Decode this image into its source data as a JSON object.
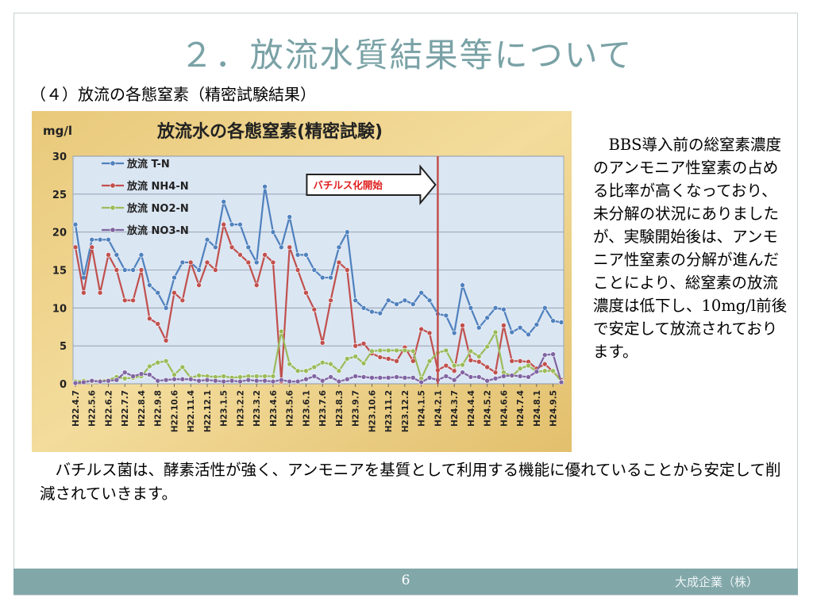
{
  "slide": {
    "title": "２．放流水質結果等について",
    "subtitle": "（４）放流の各態窒素（精密試験結果）",
    "side_text": "BBS導入前の総窒素濃度のアンモニア性窒素の占める比率が高くなっており、未分解の状況にありましたが、実験開始後は、アンモニア性窒素の分解が進んだことにより、総窒素の放流濃度は低下し、10mg/l前後で安定して放流されております。",
    "body_text": "バチルス菌は、酵素活性が強く、アンモニアを基質として利用する機能に優れていることから安定して削減されていきます。",
    "page_number": "6",
    "company": "大成企業（株）"
  },
  "colors": {
    "title": "#7aa2a6",
    "footer": "#82a7a9",
    "plot_bg": "#dbe6f3",
    "series_tn": "#4f81bd",
    "series_nh4": "#c0504d",
    "series_no2": "#9bbb59",
    "series_no3": "#8064a2",
    "marker_line": "#c0504d"
  },
  "chart_data": {
    "type": "line",
    "title": "放流水の各態窒素(精密試験)",
    "ylabel": "mg/l",
    "ylim": [
      0,
      30
    ],
    "yticks": [
      0,
      5,
      10,
      15,
      20,
      25,
      30
    ],
    "legend_position": "top-left",
    "grid": true,
    "annotation": {
      "text": "バチルス化開始",
      "at_index": 44
    },
    "x_tick_labels": [
      "H22.4.7",
      "H22.5.6",
      "H22.6.2",
      "H22.7.7",
      "H22.8.4",
      "H22.9.8",
      "H22.10.6",
      "H22.11.4",
      "H22.12.1",
      "H23.1.5",
      "H23.2.2",
      "H23.3.2",
      "H23.4.6",
      "H23.5.6",
      "H23.6.1",
      "H23.7.6",
      "H23.8.3",
      "H23.9.7",
      "H23.10.6",
      "H23.11.2",
      "H23.12.2",
      "H24.1.5",
      "H24.2.1",
      "H24.3.7",
      "H24.4.4",
      "H24.5.2",
      "H24.6.6",
      "H24.7.4",
      "H24.8.1",
      "H24.9.5"
    ],
    "series": [
      {
        "name": "放流 T-N",
        "values": [
          21,
          14,
          19,
          19,
          19,
          17,
          15,
          15,
          17,
          13,
          12,
          10,
          14,
          16,
          16,
          15,
          19,
          18,
          24,
          21,
          21,
          18,
          16,
          26,
          20,
          18,
          22,
          17,
          17,
          15,
          14,
          14,
          18,
          20,
          11,
          10,
          9.5,
          9.3,
          11,
          10.5,
          11,
          10.5,
          12,
          11,
          9.2,
          9,
          6.7,
          13,
          10,
          7.4,
          8.7,
          10,
          9.8,
          6.8,
          7.4,
          6.5,
          7.8,
          10,
          8.3,
          8.1
        ]
      },
      {
        "name": "放流 NH4-N",
        "values": [
          18,
          12,
          18,
          12,
          17,
          15,
          11,
          11,
          15,
          8.6,
          7.9,
          5.7,
          12,
          11,
          16,
          13,
          16,
          15,
          21,
          18,
          17,
          16,
          13,
          17,
          16,
          0.3,
          18,
          15,
          12,
          9.8,
          5.4,
          11,
          16,
          15,
          5,
          5.3,
          4,
          3.5,
          3.3,
          3,
          4.8,
          3,
          7.2,
          6.7,
          1.8,
          2.4,
          1.7,
          7.7,
          3.1,
          2.9,
          2.2,
          1.5,
          7.7,
          3,
          3,
          2.9,
          2,
          2.6,
          1.6,
          0.5
        ]
      },
      {
        "name": "放流 NO2-N",
        "values": [
          0.3,
          0.4,
          0.3,
          0.4,
          0.5,
          0.9,
          0.7,
          0.8,
          1,
          2.3,
          2.8,
          3,
          1.2,
          2.2,
          0.8,
          1.1,
          1,
          0.9,
          1,
          0.8,
          0.9,
          1,
          1,
          1,
          1,
          6.9,
          2.6,
          1.7,
          1.7,
          2.2,
          2.8,
          2.6,
          1.7,
          3.3,
          3.6,
          2.7,
          4.3,
          4.4,
          4.4,
          4.4,
          4.4,
          4.3,
          0.7,
          3,
          4.1,
          4.4,
          2.4,
          2.5,
          4.3,
          3.6,
          4.9,
          6.8,
          1.5,
          1,
          2,
          2.4,
          1.6,
          1.7,
          1.7,
          0.3
        ]
      },
      {
        "name": "放流 NO3-N",
        "values": [
          0.1,
          0.2,
          0.4,
          0.3,
          0.4,
          0.5,
          1.5,
          1,
          1.3,
          1.2,
          0.4,
          0.5,
          0.6,
          0.6,
          0.6,
          0.4,
          0.5,
          0.4,
          0.3,
          0.4,
          0.3,
          0.5,
          0.4,
          0.4,
          0.3,
          0.5,
          0.3,
          0.3,
          0.6,
          1,
          0.4,
          0.9,
          0.3,
          0.6,
          1,
          0.9,
          0.8,
          0.8,
          0.8,
          0.9,
          0.8,
          0.8,
          0.2,
          0.8,
          0.5,
          1,
          0.5,
          1.5,
          0.9,
          0.9,
          0.4,
          0.7,
          1,
          1.1,
          1,
          0.9,
          1.6,
          3.8,
          3.9,
          0.2
        ]
      }
    ]
  }
}
